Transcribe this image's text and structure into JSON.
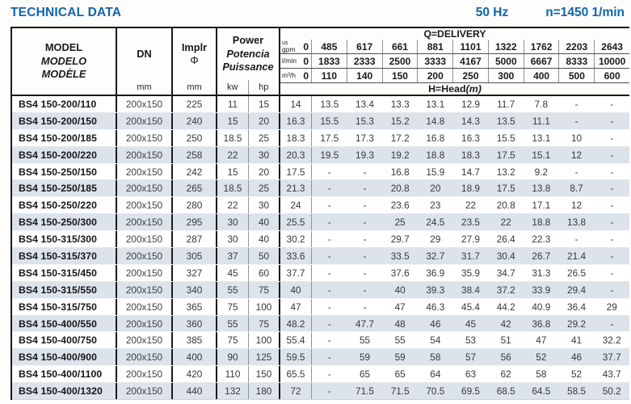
{
  "header": {
    "title": "TECHNICAL DATA",
    "frequency": "50 Hz",
    "speed": "n=1450 1/min",
    "accent_color": "#1065ad",
    "row_shade_color": "#dce3ea"
  },
  "table": {
    "model_header": {
      "line1": "MODEL",
      "line2": "MODELO",
      "line3": "MODÈLE"
    },
    "dn_header": {
      "label": "DN",
      "unit": "mm"
    },
    "impeller_header": {
      "label": "Implr",
      "symbol": "Φ",
      "unit": "mm"
    },
    "power_header": {
      "line1": "Power",
      "line2": "Potencia",
      "line3": "Puissance",
      "unit_kw": "kw",
      "unit_hp": "hp"
    },
    "delivery_header": {
      "title": "Q=DELIVERY",
      "unit_rows": [
        {
          "unit_small": "us",
          "unit": "gpm",
          "zero": "0",
          "values": [
            "485",
            "617",
            "661",
            "881",
            "1101",
            "1322",
            "1762",
            "2203",
            "2643"
          ]
        },
        {
          "unit": "l/min",
          "zero": "0",
          "values": [
            "1833",
            "2333",
            "2500",
            "3333",
            "4167",
            "5000",
            "6667",
            "8333",
            "10000"
          ]
        },
        {
          "unit": "m³/h",
          "zero": "0",
          "values": [
            "110",
            "140",
            "150",
            "200",
            "250",
            "300",
            "400",
            "500",
            "600"
          ]
        }
      ],
      "head_label": "H=Head",
      "head_unit": "(m)"
    },
    "rows": [
      {
        "model": "BS4 150-200/110",
        "dn": "200x150",
        "impeller": "225",
        "kw": "11",
        "hp": "15",
        "head": [
          "14",
          "13.5",
          "13.4",
          "13.3",
          "13.1",
          "12.9",
          "11.7",
          "7.8",
          "-",
          "-"
        ]
      },
      {
        "model": "BS4 150-200/150",
        "dn": "200x150",
        "impeller": "240",
        "kw": "15",
        "hp": "20",
        "head": [
          "16.3",
          "15.5",
          "15.3",
          "15.2",
          "14.8",
          "14.3",
          "13.5",
          "11.1",
          "-",
          "-"
        ]
      },
      {
        "model": "BS4 150-200/185",
        "dn": "200x150",
        "impeller": "250",
        "kw": "18.5",
        "hp": "25",
        "head": [
          "18.3",
          "17.5",
          "17.3",
          "17.2",
          "16.8",
          "16.3",
          "15.5",
          "13.1",
          "10",
          "-"
        ]
      },
      {
        "model": "BS4 150-200/220",
        "dn": "200x150",
        "impeller": "258",
        "kw": "22",
        "hp": "30",
        "head": [
          "20.3",
          "19.5",
          "19.3",
          "19.2",
          "18.8",
          "18.3",
          "17.5",
          "15.1",
          "12",
          "-"
        ]
      },
      {
        "model": "BS4 150-250/150",
        "dn": "200x150",
        "impeller": "242",
        "kw": "15",
        "hp": "20",
        "head": [
          "17.5",
          "-",
          "-",
          "16.8",
          "15.9",
          "14.7",
          "13.2",
          "9.2",
          "-",
          "-"
        ]
      },
      {
        "model": "BS4 150-250/185",
        "dn": "200x150",
        "impeller": "265",
        "kw": "18.5",
        "hp": "25",
        "head": [
          "21.3",
          "-",
          "-",
          "20.8",
          "20",
          "18.9",
          "17.5",
          "13.8",
          "8.7",
          "-"
        ]
      },
      {
        "model": "BS4 150-250/220",
        "dn": "200x150",
        "impeller": "280",
        "kw": "22",
        "hp": "30",
        "head": [
          "24",
          "-",
          "-",
          "23.6",
          "23",
          "22",
          "20.8",
          "17.1",
          "12",
          "-"
        ]
      },
      {
        "model": "BS4 150-250/300",
        "dn": "200x150",
        "impeller": "295",
        "kw": "30",
        "hp": "40",
        "head": [
          "25.5",
          "-",
          "-",
          "25",
          "24.5",
          "23.5",
          "22",
          "18.8",
          "13.8",
          "-"
        ]
      },
      {
        "model": "BS4 150-315/300",
        "dn": "200x150",
        "impeller": "287",
        "kw": "30",
        "hp": "40",
        "head": [
          "30.2",
          "-",
          "-",
          "29.7",
          "29",
          "27.9",
          "26.4",
          "22.3",
          "-",
          "-"
        ]
      },
      {
        "model": "BS4 150-315/370",
        "dn": "200x150",
        "impeller": "305",
        "kw": "37",
        "hp": "50",
        "head": [
          "33.6",
          "-",
          "-",
          "33.5",
          "32.7",
          "31.7",
          "30.4",
          "26.7",
          "21.4",
          "-"
        ]
      },
      {
        "model": "BS4 150-315/450",
        "dn": "200x150",
        "impeller": "327",
        "kw": "45",
        "hp": "60",
        "head": [
          "37.7",
          "-",
          "-",
          "37.6",
          "36.9",
          "35.9",
          "34.7",
          "31.3",
          "26.5",
          "-"
        ]
      },
      {
        "model": "BS4 150-315/550",
        "dn": "200x150",
        "impeller": "340",
        "kw": "55",
        "hp": "75",
        "head": [
          "40",
          "-",
          "-",
          "40",
          "39.3",
          "38.4",
          "37.2",
          "33.9",
          "29.4",
          "-"
        ]
      },
      {
        "model": "BS4 150-315/750",
        "dn": "200x150",
        "impeller": "365",
        "kw": "75",
        "hp": "100",
        "head": [
          "47",
          "-",
          "-",
          "47",
          "46.3",
          "45.4",
          "44.2",
          "40.9",
          "36.4",
          "29"
        ]
      },
      {
        "model": "BS4 150-400/550",
        "dn": "200x150",
        "impeller": "360",
        "kw": "55",
        "hp": "75",
        "head": [
          "48.2",
          "-",
          "47.7",
          "48",
          "46",
          "45",
          "42",
          "36.8",
          "29.2",
          "-"
        ]
      },
      {
        "model": "BS4 150-400/750",
        "dn": "200x150",
        "impeller": "385",
        "kw": "75",
        "hp": "100",
        "head": [
          "55.4",
          "-",
          "55",
          "55",
          "54",
          "53",
          "51",
          "47",
          "41",
          "32.2"
        ]
      },
      {
        "model": "BS4 150-400/900",
        "dn": "200x150",
        "impeller": "400",
        "kw": "90",
        "hp": "125",
        "head": [
          "59.5",
          "-",
          "59",
          "59",
          "58",
          "57",
          "56",
          "52",
          "46",
          "37.7"
        ]
      },
      {
        "model": "BS4 150-400/1100",
        "dn": "200x150",
        "impeller": "420",
        "kw": "110",
        "hp": "150",
        "head": [
          "65.5",
          "-",
          "65",
          "65",
          "64",
          "63",
          "62",
          "58",
          "52",
          "43.7"
        ]
      },
      {
        "model": "BS4 150-400/1320",
        "dn": "200x150",
        "impeller": "440",
        "kw": "132",
        "hp": "180",
        "head": [
          "72",
          "-",
          "71.5",
          "71.5",
          "70.5",
          "69.5",
          "68.5",
          "64.5",
          "58.5",
          "50.2"
        ]
      }
    ]
  }
}
